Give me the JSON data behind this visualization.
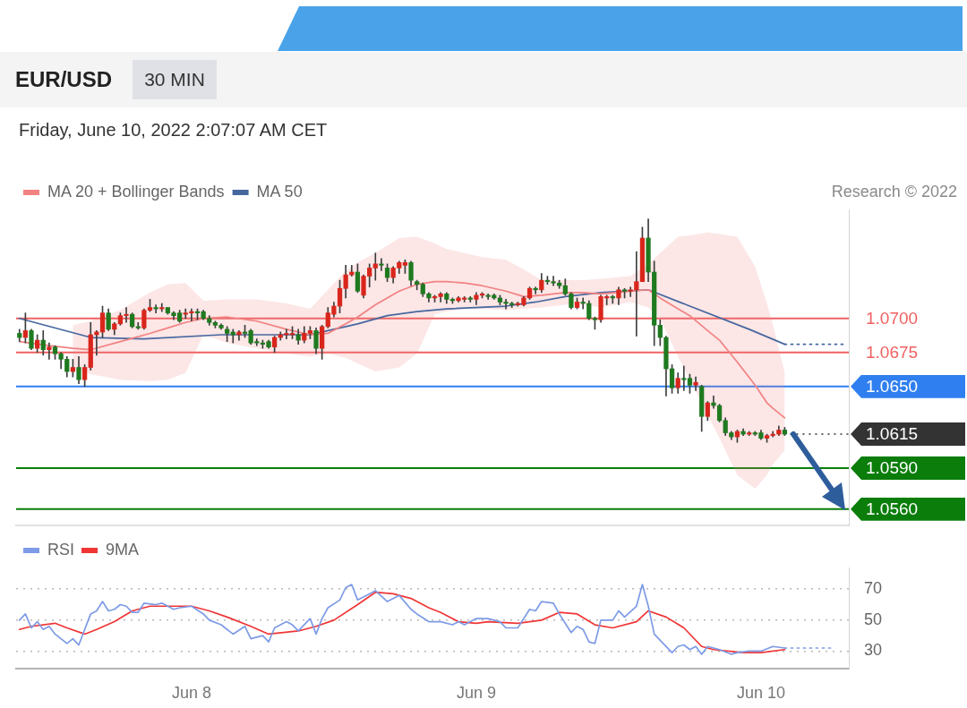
{
  "chart_data": [
    {
      "type": "candlestick",
      "title": "EUR/USD",
      "subtitle": "Friday, June 10, 2022 2:07:07 AM CET",
      "annotations": [
        "30 MIN",
        "Research © 2022"
      ],
      "xlim": [
        "2022-06-07T09:13",
        "2022-06-10T07:24"
      ],
      "ylim": [
        1.0548,
        1.078
      ],
      "tick_labels": false,
      "legend": "top left",
      "marker": "none",
      "ref_lines": [
        {
          "axis": "y",
          "value": 1.07,
          "label": "1.0700",
          "color": "#f06060"
        },
        {
          "axis": "y",
          "value": 1.0675,
          "label": "1.0675",
          "color": "#f06060"
        },
        {
          "axis": "y",
          "value": 1.065,
          "label": "1.0650",
          "color": "#2f7ff0"
        },
        {
          "axis": "y",
          "value": 1.0615,
          "label": "1.0615",
          "color": "#333333",
          "line_style": "dotted"
        },
        {
          "axis": "y",
          "value": 1.059,
          "label": "1.0590",
          "color": "#0a7d0a"
        },
        {
          "axis": "y",
          "value": 1.056,
          "label": "1.0560",
          "color": "#0a7d0a"
        }
      ],
      "series": [
        {
          "x": [
            "2022-06-07T09:30",
            "2022-06-07T10:00",
            "2022-06-07T10:30",
            "2022-06-07T11:00",
            "2022-06-07T11:30",
            "2022-06-07T12:00",
            "2022-06-07T12:30",
            "2022-06-07T13:00",
            "2022-06-07T13:30",
            "2022-06-07T14:00",
            "2022-06-07T14:30",
            "2022-06-07T15:00",
            "2022-06-07T15:30",
            "2022-06-07T16:00",
            "2022-06-07T16:30",
            "2022-06-07T17:00",
            "2022-06-07T17:30",
            "2022-06-07T18:00",
            "2022-06-07T18:30",
            "2022-06-07T19:00",
            "2022-06-07T19:30",
            "2022-06-07T20:00",
            "2022-06-07T20:30",
            "2022-06-07T21:00",
            "2022-06-07T21:30",
            "2022-06-07T22:00",
            "2022-06-07T22:30",
            "2022-06-07T23:00",
            "2022-06-07T23:30",
            "2022-06-08T00:00",
            "2022-06-08T00:30",
            "2022-06-08T01:00",
            "2022-06-08T01:30",
            "2022-06-08T02:00",
            "2022-06-08T02:30",
            "2022-06-08T03:00",
            "2022-06-08T03:30",
            "2022-06-08T04:00",
            "2022-06-08T04:30",
            "2022-06-08T05:00",
            "2022-06-08T05:30",
            "2022-06-08T06:00",
            "2022-06-08T06:30",
            "2022-06-08T07:00",
            "2022-06-08T07:30",
            "2022-06-08T08:00",
            "2022-06-08T08:30",
            "2022-06-08T09:00",
            "2022-06-08T09:30",
            "2022-06-08T10:00",
            "2022-06-08T10:30",
            "2022-06-08T11:00",
            "2022-06-08T11:30",
            "2022-06-08T12:00",
            "2022-06-08T12:30",
            "2022-06-08T13:00",
            "2022-06-08T13:30",
            "2022-06-08T14:00",
            "2022-06-08T14:30",
            "2022-06-08T15:00",
            "2022-06-08T15:30",
            "2022-06-08T16:00",
            "2022-06-08T16:30",
            "2022-06-08T17:00",
            "2022-06-08T17:30",
            "2022-06-08T18:00",
            "2022-06-08T18:30",
            "2022-06-08T19:00",
            "2022-06-08T19:30",
            "2022-06-08T20:00",
            "2022-06-08T20:30",
            "2022-06-08T21:00",
            "2022-06-08T21:30",
            "2022-06-08T22:00",
            "2022-06-08T22:30",
            "2022-06-08T23:00",
            "2022-06-08T23:30",
            "2022-06-09T00:00",
            "2022-06-09T00:30",
            "2022-06-09T01:00",
            "2022-06-09T01:30",
            "2022-06-09T02:00",
            "2022-06-09T02:30",
            "2022-06-09T03:00",
            "2022-06-09T03:30",
            "2022-06-09T04:00",
            "2022-06-09T04:30",
            "2022-06-09T05:00",
            "2022-06-09T05:30",
            "2022-06-09T06:00",
            "2022-06-09T06:30",
            "2022-06-09T07:00",
            "2022-06-09T07:30",
            "2022-06-09T08:00",
            "2022-06-09T08:30",
            "2022-06-09T09:00",
            "2022-06-09T09:30",
            "2022-06-09T10:00",
            "2022-06-09T10:30",
            "2022-06-09T11:00",
            "2022-06-09T11:30",
            "2022-06-09T12:00",
            "2022-06-09T12:30",
            "2022-06-09T13:00",
            "2022-06-09T13:30",
            "2022-06-09T14:00",
            "2022-06-09T14:30",
            "2022-06-09T15:00",
            "2022-06-09T15:30",
            "2022-06-09T16:00",
            "2022-06-09T16:30",
            "2022-06-09T17:00",
            "2022-06-09T17:30",
            "2022-06-09T18:00",
            "2022-06-09T18:30",
            "2022-06-09T19:00",
            "2022-06-09T19:30",
            "2022-06-09T20:00",
            "2022-06-09T20:30",
            "2022-06-09T21:00",
            "2022-06-09T21:30",
            "2022-06-09T22:00",
            "2022-06-09T22:30",
            "2022-06-09T23:00",
            "2022-06-09T23:30",
            "2022-06-10T00:00",
            "2022-06-10T00:30",
            "2022-06-10T01:00",
            "2022-06-10T01:30",
            "2022-06-10T02:00"
          ],
          "ohlc": [
            [
              1.0689,
              1.0692,
              1.0683,
              1.0686
            ],
            [
              1.0686,
              1.0704,
              1.0682,
              1.0691
            ],
            [
              1.0691,
              1.0692,
              1.0677,
              1.0678
            ],
            [
              1.0678,
              1.0688,
              1.0675,
              1.0684
            ],
            [
              1.0684,
              1.0691,
              1.0673,
              1.0677
            ],
            [
              1.0677,
              1.0682,
              1.067,
              1.0679
            ],
            [
              1.0679,
              1.068,
              1.067,
              1.0674
            ],
            [
              1.0674,
              1.0675,
              1.0663,
              1.067
            ],
            [
              1.067,
              1.0672,
              1.0657,
              1.0661
            ],
            [
              1.0661,
              1.067,
              1.0657,
              1.0664
            ],
            [
              1.0664,
              1.0672,
              1.0652,
              1.0655
            ],
            [
              1.0655,
              1.0666,
              1.065,
              1.0664
            ],
            [
              1.0664,
              1.0697,
              1.0662,
              1.0688
            ],
            [
              1.0688,
              1.0691,
              1.0673,
              1.069
            ],
            [
              1.069,
              1.0709,
              1.0686,
              1.0704
            ],
            [
              1.0704,
              1.0707,
              1.0691,
              1.0692
            ],
            [
              1.0692,
              1.0697,
              1.0688,
              1.0696
            ],
            [
              1.0696,
              1.0704,
              1.0695,
              1.0702
            ],
            [
              1.0702,
              1.0708,
              1.0697,
              1.0703
            ],
            [
              1.0703,
              1.0704,
              1.0693,
              1.0694
            ],
            [
              1.0694,
              1.0697,
              1.0692,
              1.0693
            ],
            [
              1.0693,
              1.0707,
              1.0692,
              1.0706
            ],
            [
              1.0706,
              1.0714,
              1.0705,
              1.0708
            ],
            [
              1.0708,
              1.071,
              1.0704,
              1.0707
            ],
            [
              1.0707,
              1.0711,
              1.0705,
              1.0708
            ],
            [
              1.0708,
              1.0708,
              1.0703,
              1.0704
            ],
            [
              1.0704,
              1.0705,
              1.0699,
              1.0702
            ],
            [
              1.0704,
              1.0706,
              1.0697,
              1.0698
            ],
            [
              1.0703,
              1.0707,
              1.07,
              1.0704
            ],
            [
              1.0704,
              1.0707,
              1.0698,
              1.0705
            ],
            [
              1.0705,
              1.0707,
              1.0699,
              1.0704
            ],
            [
              1.0705,
              1.0706,
              1.0699,
              1.07
            ],
            [
              1.07,
              1.0702,
              1.0695,
              1.0697
            ],
            [
              1.0697,
              1.0698,
              1.0693,
              1.0695
            ],
            [
              1.0695,
              1.0696,
              1.0692,
              1.0693
            ],
            [
              1.0692,
              1.0694,
              1.0683,
              1.0689
            ],
            [
              1.069,
              1.0692,
              1.0682,
              1.0688
            ],
            [
              1.0688,
              1.0691,
              1.0684,
              1.069
            ],
            [
              1.069,
              1.0695,
              1.0686,
              1.0689
            ],
            [
              1.0691,
              1.0692,
              1.0681,
              1.0682
            ],
            [
              1.0683,
              1.0685,
              1.068,
              1.0682
            ],
            [
              1.0682,
              1.0684,
              1.0678,
              1.0681
            ],
            [
              1.0683,
              1.0684,
              1.0678,
              1.0679
            ],
            [
              1.0679,
              1.0687,
              1.0675,
              1.0686
            ],
            [
              1.0686,
              1.069,
              1.0684,
              1.0688
            ],
            [
              1.0688,
              1.0692,
              1.0685,
              1.0689
            ],
            [
              1.0688,
              1.0694,
              1.0685,
              1.0689
            ],
            [
              1.0688,
              1.0692,
              1.0681,
              1.0684
            ],
            [
              1.0684,
              1.0694,
              1.0682,
              1.0689
            ],
            [
              1.0689,
              1.0694,
              1.0685,
              1.0691
            ],
            [
              1.0691,
              1.0693,
              1.0674,
              1.0678
            ],
            [
              1.0678,
              1.0695,
              1.067,
              1.0694
            ],
            [
              1.0694,
              1.0708,
              1.0693,
              1.0704
            ],
            [
              1.0703,
              1.0712,
              1.0701,
              1.0709
            ],
            [
              1.0709,
              1.0728,
              1.0704,
              1.0722
            ],
            [
              1.0722,
              1.0739,
              1.0715,
              1.0732
            ],
            [
              1.0732,
              1.0739,
              1.0731,
              1.0734
            ],
            [
              1.0734,
              1.074,
              1.0719,
              1.072
            ],
            [
              1.0717,
              1.0732,
              1.0715,
              1.0731
            ],
            [
              1.0731,
              1.074,
              1.0723,
              1.0737
            ],
            [
              1.0737,
              1.0748,
              1.0728,
              1.074
            ],
            [
              1.074,
              1.0744,
              1.0735,
              1.0739
            ],
            [
              1.0737,
              1.074,
              1.0727,
              1.073
            ],
            [
              1.073,
              1.0738,
              1.0726,
              1.0737
            ],
            [
              1.0737,
              1.0742,
              1.0733,
              1.0741
            ],
            [
              1.0739,
              1.0743,
              1.0733,
              1.0741
            ],
            [
              1.0741,
              1.0742,
              1.0724,
              1.0728
            ],
            [
              1.0727,
              1.0728,
              1.0721,
              1.0725
            ],
            [
              1.0725,
              1.0726,
              1.0716,
              1.0718
            ],
            [
              1.0718,
              1.0719,
              1.0712,
              1.0715
            ],
            [
              1.0715,
              1.0717,
              1.0712,
              1.0716
            ],
            [
              1.0716,
              1.0719,
              1.0712,
              1.0718
            ],
            [
              1.0718,
              1.0719,
              1.0711,
              1.0714
            ],
            [
              1.0714,
              1.0715,
              1.0711,
              1.0713
            ],
            [
              1.0713,
              1.0716,
              1.0712,
              1.0715
            ],
            [
              1.0714,
              1.0716,
              1.0712,
              1.0715
            ],
            [
              1.0715,
              1.0716,
              1.0712,
              1.0714
            ],
            [
              1.0714,
              1.0719,
              1.071,
              1.0717
            ],
            [
              1.0717,
              1.0719,
              1.0715,
              1.0718
            ],
            [
              1.0717,
              1.0718,
              1.0714,
              1.0716
            ],
            [
              1.0717,
              1.0718,
              1.0714,
              1.0715
            ],
            [
              1.0715,
              1.0717,
              1.071,
              1.0712
            ],
            [
              1.0712,
              1.0714,
              1.0707,
              1.0711
            ],
            [
              1.0711,
              1.0712,
              1.0708,
              1.071
            ],
            [
              1.071,
              1.0712,
              1.0709,
              1.0711
            ],
            [
              1.071,
              1.0716,
              1.0709,
              1.0715
            ],
            [
              1.0715,
              1.0723,
              1.0714,
              1.0722
            ],
            [
              1.0722,
              1.0723,
              1.0718,
              1.0721
            ],
            [
              1.0721,
              1.0733,
              1.0719,
              1.0728
            ],
            [
              1.0728,
              1.0731,
              1.0725,
              1.0727
            ],
            [
              1.0727,
              1.0731,
              1.0724,
              1.0726
            ],
            [
              1.0726,
              1.0728,
              1.0722,
              1.0724
            ],
            [
              1.0724,
              1.0729,
              1.0717,
              1.0718
            ],
            [
              1.0718,
              1.0719,
              1.0707,
              1.0708
            ],
            [
              1.0708,
              1.0715,
              1.0707,
              1.0712
            ],
            [
              1.0712,
              1.0715,
              1.0707,
              1.0711
            ],
            [
              1.0711,
              1.0713,
              1.0699,
              1.07
            ],
            [
              1.07,
              1.0701,
              1.0692,
              1.0699
            ],
            [
              1.0699,
              1.0717,
              1.0697,
              1.0716
            ],
            [
              1.0715,
              1.0717,
              1.071,
              1.0716
            ],
            [
              1.0716,
              1.0717,
              1.0711,
              1.0715
            ],
            [
              1.0715,
              1.0723,
              1.071,
              1.0721
            ],
            [
              1.0721,
              1.0722,
              1.0715,
              1.072
            ],
            [
              1.072,
              1.0723,
              1.0716,
              1.0721
            ],
            [
              1.0721,
              1.0749,
              1.0687,
              1.0727
            ],
            [
              1.0727,
              1.0767,
              1.0727,
              1.0759
            ],
            [
              1.0759,
              1.0773,
              1.0727,
              1.0734
            ],
            [
              1.0734,
              1.0742,
              1.068,
              1.0695
            ],
            [
              1.0695,
              1.0699,
              1.068,
              1.0686
            ],
            [
              1.0686,
              1.0687,
              1.0643,
              1.0663
            ],
            [
              1.0663,
              1.0666,
              1.0645,
              1.0649
            ],
            [
              1.0649,
              1.066,
              1.0645,
              1.0656
            ],
            [
              1.0656,
              1.0665,
              1.0647,
              1.0655
            ],
            [
              1.0656,
              1.0659,
              1.0645,
              1.0651
            ],
            [
              1.0651,
              1.0657,
              1.0647,
              1.0653
            ],
            [
              1.065,
              1.0651,
              1.0617,
              1.0628
            ],
            [
              1.0628,
              1.0639,
              1.0625,
              1.0638
            ],
            [
              1.0638,
              1.0643,
              1.0634,
              1.0636
            ],
            [
              1.0636,
              1.0637,
              1.0624,
              1.0625
            ],
            [
              1.0625,
              1.0627,
              1.0614,
              1.0616
            ],
            [
              1.0616,
              1.0617,
              1.0611,
              1.0613
            ],
            [
              1.0613,
              1.0618,
              1.0609,
              1.0617
            ],
            [
              1.0617,
              1.0619,
              1.0614,
              1.0615
            ],
            [
              1.0615,
              1.0617,
              1.0614,
              1.0616
            ],
            [
              1.0616,
              1.0617,
              1.0614,
              1.0615
            ],
            [
              1.0616,
              1.0618,
              1.0611,
              1.0612
            ],
            [
              1.0612,
              1.0615,
              1.0609,
              1.0614
            ],
            [
              1.0614,
              1.0617,
              1.0613,
              1.0615
            ],
            [
              1.0615,
              1.0621,
              1.0614,
              1.0618
            ],
            [
              1.0618,
              1.062,
              1.0614,
              1.0615
            ]
          ],
          "colors": [
            "#1f7a1f",
            "#d9261c",
            "#1f7a1f",
            "#d9261c",
            "#1f7a1f",
            "#d9261c",
            "#1f7a1f",
            "#1f7a1f",
            "#1f7a1f",
            "#d9261c",
            "#1f7a1f",
            "#d9261c",
            "#d9261c",
            "#d9261c",
            "#d9261c",
            "#1f7a1f",
            "#d9261c",
            "#d9261c",
            "#d9261c",
            "#1f7a1f",
            "#1f7a1f",
            "#d9261c",
            "#d9261c",
            "#1f7a1f",
            "#d9261c",
            "#1f7a1f",
            "#1f7a1f",
            "#1f7a1f",
            "#d9261c",
            "#d9261c",
            "#1f7a1f",
            "#1f7a1f",
            "#1f7a1f",
            "#1f7a1f",
            "#1f7a1f",
            "#1f7a1f",
            "#1f7a1f",
            "#d9261c",
            "#1f7a1f",
            "#1f7a1f",
            "#1f7a1f",
            "#1f7a1f",
            "#1f7a1f",
            "#d9261c",
            "#d9261c",
            "#d9261c",
            "#d9261c",
            "#1f7a1f",
            "#d9261c",
            "#d9261c",
            "#1f7a1f",
            "#d9261c",
            "#d9261c",
            "#d9261c",
            "#d9261c",
            "#d9261c",
            "#d9261c",
            "#1f7a1f",
            "#d9261c",
            "#d9261c",
            "#d9261c",
            "#1f7a1f",
            "#1f7a1f",
            "#d9261c",
            "#d9261c",
            "#d9261c",
            "#1f7a1f",
            "#1f7a1f",
            "#1f7a1f",
            "#1f7a1f",
            "#d9261c",
            "#d9261c",
            "#1f7a1f",
            "#1f7a1f",
            "#d9261c",
            "#d9261c",
            "#1f7a1f",
            "#d9261c",
            "#d9261c",
            "#1f7a1f",
            "#1f7a1f",
            "#1f7a1f",
            "#1f7a1f",
            "#1f7a1f",
            "#d9261c",
            "#d9261c",
            "#d9261c",
            "#1f7a1f",
            "#d9261c",
            "#1f7a1f",
            "#1f7a1f",
            "#1f7a1f",
            "#1f7a1f",
            "#1f7a1f",
            "#d9261c",
            "#1f7a1f",
            "#1f7a1f",
            "#1f7a1f",
            "#d9261c",
            "#d9261c",
            "#1f7a1f",
            "#d9261c",
            "#1f7a1f",
            "#d9261c",
            "#d9261c",
            "#d9261c",
            "#1f7a1f",
            "#1f7a1f",
            "#1f7a1f",
            "#1f7a1f",
            "#1f7a1f",
            "#d9261c",
            "#1f7a1f",
            "#1f7a1f",
            "#d9261c",
            "#1f7a1f",
            "#d9261c",
            "#1f7a1f",
            "#1f7a1f",
            "#1f7a1f",
            "#1f7a1f",
            "#d9261c",
            "#1f7a1f",
            "#d9261c",
            "#1f7a1f",
            "#1f7a1f",
            "#d9261c",
            "#d9261c",
            "#d9261c",
            "#1f7a1f"
          ]
        },
        {
          "type": "line",
          "name": "MA 20 + Bollinger Bands",
          "color": "#f28282",
          "x": [
            "2022-06-07T09:30",
            "2022-06-07T12:00",
            "2022-06-07T14:00",
            "2022-06-07T15:30",
            "2022-06-07T18:00",
            "2022-06-07T20:30",
            "2022-06-07T22:00",
            "2022-06-07T23:30",
            "2022-06-08T01:00",
            "2022-06-08T03:00",
            "2022-06-08T05:30",
            "2022-06-08T08:00",
            "2022-06-08T10:00",
            "2022-06-08T11:30",
            "2022-06-08T13:00",
            "2022-06-08T14:00",
            "2022-06-08T15:30",
            "2022-06-08T17:30",
            "2022-06-08T19:00",
            "2022-06-08T20:30",
            "2022-06-08T21:30",
            "2022-06-08T23:00",
            "2022-06-09T00:30",
            "2022-06-09T02:30",
            "2022-06-09T04:00",
            "2022-06-09T05:30",
            "2022-06-09T07:30",
            "2022-06-09T09:00",
            "2022-06-09T10:30",
            "2022-06-09T13:00",
            "2022-06-09T14:30",
            "2022-06-09T15:30",
            "2022-06-09T17:00",
            "2022-06-09T18:00",
            "2022-06-09T19:30",
            "2022-06-09T20:30",
            "2022-06-09T22:00",
            "2022-06-09T23:30",
            "2022-06-10T00:30",
            "2022-06-10T01:00",
            "2022-06-10T02:00"
          ],
          "values": [
            1.0683,
            1.068,
            1.0678,
            1.0677,
            1.0683,
            1.0689,
            1.0693,
            1.0697,
            1.07,
            1.0701,
            1.0698,
            1.0692,
            1.0688,
            1.0689,
            1.0696,
            1.0701,
            1.071,
            1.072,
            1.0725,
            1.0727,
            1.0727,
            1.0726,
            1.0724,
            1.072,
            1.0716,
            1.0717,
            1.0719,
            1.0719,
            1.0718,
            1.072,
            1.0721,
            1.0715,
            1.0707,
            1.0702,
            1.0691,
            1.0684,
            1.0668,
            1.0651,
            1.0638,
            1.0634,
            1.0627
          ],
          "upper": [
            null,
            null,
            1.0695,
            1.0698,
            1.0706,
            1.0719,
            1.0725,
            1.0726,
            1.0713,
            1.0714,
            1.0714,
            1.0711,
            1.0707,
            1.0721,
            1.0735,
            1.0741,
            1.0748,
            1.0759,
            1.076,
            1.0755,
            1.0751,
            1.0748,
            1.0745,
            1.0743,
            1.0736,
            1.0728,
            1.0728,
            1.0728,
            1.0729,
            1.0731,
            1.074,
            1.0748,
            1.076,
            1.0761,
            1.0763,
            1.0762,
            1.076,
            1.0738,
            1.0711,
            1.0695,
            1.066
          ],
          "lower": [
            null,
            null,
            1.0663,
            1.0659,
            1.0655,
            1.0654,
            1.0655,
            1.066,
            1.0688,
            1.0682,
            1.0678,
            1.0674,
            1.0672,
            1.0674,
            1.0671,
            1.0667,
            1.0661,
            1.0664,
            1.0674,
            1.0703,
            1.0705,
            1.0707,
            1.0707,
            1.0706,
            1.0707,
            1.0708,
            1.071,
            1.071,
            1.0708,
            1.0712,
            1.0708,
            1.07,
            1.0672,
            1.0655,
            1.0629,
            1.0612,
            1.0585,
            1.0575,
            1.0585,
            1.0593,
            1.0603
          ]
        },
        {
          "type": "line",
          "name": "MA 50",
          "color": "#46679e",
          "x": [
            "2022-06-07T09:30",
            "2022-06-07T15:30",
            "2022-06-07T20:00",
            "2022-06-08T02:30",
            "2022-06-08T10:00",
            "2022-06-08T11:30",
            "2022-06-08T14:00",
            "2022-06-08T16:30",
            "2022-06-08T19:00",
            "2022-06-08T21:30",
            "2022-06-09T02:30",
            "2022-06-09T05:00",
            "2022-06-09T07:30",
            "2022-06-09T10:30",
            "2022-06-09T14:30",
            "2022-06-09T18:00",
            "2022-06-09T23:00",
            "2022-06-10T02:00"
          ],
          "values": [
            1.07,
            1.0686,
            1.0685,
            1.0688,
            1.0688,
            1.0691,
            1.0696,
            1.0702,
            1.0705,
            1.0707,
            1.0709,
            1.0712,
            1.0716,
            1.0719,
            1.0721,
            1.0709,
            1.0692,
            1.0681
          ]
        },
        {
          "type": "line",
          "color": "#46679e",
          "line_style": "dotted",
          "x": [
            "2022-06-10T02:00",
            "2022-06-10T07:00"
          ],
          "values": [
            1.0681,
            1.0681
          ]
        }
      ]
    },
    {
      "type": "line",
      "xlim": [
        "2022-06-07T09:13",
        "2022-06-10T07:24"
      ],
      "ylim": [
        19,
        84
      ],
      "yticks": [
        30,
        50,
        70
      ],
      "xticks": [
        {
          "value": "2022-06-08",
          "label": "Jun 8"
        },
        {
          "value": "2022-06-09",
          "label": "Jun 9"
        },
        {
          "value": "2022-06-10",
          "label": "Jun 10"
        }
      ],
      "grid": "y",
      "legend": "top left",
      "marker": "none",
      "series": [
        {
          "name": "RSI",
          "color": "#7d9be6",
          "x": [
            "2022-06-07T09:30",
            "2022-06-07T10:00",
            "2022-06-07T10:30",
            "2022-06-07T11:00",
            "2022-06-07T11:30",
            "2022-06-07T12:00",
            "2022-06-07T12:30",
            "2022-06-07T13:30",
            "2022-06-07T14:00",
            "2022-06-07T14:30",
            "2022-06-07T15:30",
            "2022-06-07T16:00",
            "2022-06-07T16:30",
            "2022-06-07T17:00",
            "2022-06-07T17:30",
            "2022-06-07T18:00",
            "2022-06-07T18:30",
            "2022-06-07T19:00",
            "2022-06-07T19:30",
            "2022-06-07T20:00",
            "2022-06-07T21:00",
            "2022-06-07T21:30",
            "2022-06-07T22:30",
            "2022-06-07T23:00",
            "2022-06-08T00:00",
            "2022-06-08T01:00",
            "2022-06-08T01:30",
            "2022-06-08T02:30",
            "2022-06-08T03:30",
            "2022-06-08T04:30",
            "2022-06-08T05:00",
            "2022-06-08T06:00",
            "2022-06-08T06:30",
            "2022-06-08T07:00",
            "2022-06-08T08:00",
            "2022-06-08T08:30",
            "2022-06-08T09:00",
            "2022-06-08T10:00",
            "2022-06-08T10:30",
            "2022-06-08T11:00",
            "2022-06-08T11:30",
            "2022-06-08T12:30",
            "2022-06-08T13:00",
            "2022-06-08T13:30",
            "2022-06-08T14:00",
            "2022-06-08T15:00",
            "2022-06-08T15:30",
            "2022-06-08T16:30",
            "2022-06-08T17:30",
            "2022-06-08T18:30",
            "2022-06-08T19:00",
            "2022-06-08T20:00",
            "2022-06-08T20:30",
            "2022-06-08T21:00",
            "2022-06-08T22:00",
            "2022-06-08T22:30",
            "2022-06-08T23:00",
            "2022-06-09T00:00",
            "2022-06-09T01:00",
            "2022-06-09T02:00",
            "2022-06-09T02:30",
            "2022-06-09T03:30",
            "2022-06-09T04:30",
            "2022-06-09T05:00",
            "2022-06-09T05:30",
            "2022-06-09T06:30",
            "2022-06-09T07:00",
            "2022-06-09T08:00",
            "2022-06-09T08:30",
            "2022-06-09T09:00",
            "2022-06-09T09:30",
            "2022-06-09T10:00",
            "2022-06-09T10:30",
            "2022-06-09T11:30",
            "2022-06-09T12:00",
            "2022-06-09T12:30",
            "2022-06-09T13:30",
            "2022-06-09T14:00",
            "2022-06-09T14:30",
            "2022-06-09T15:00",
            "2022-06-09T15:30",
            "2022-06-09T16:30",
            "2022-06-09T17:00",
            "2022-06-09T17:30",
            "2022-06-09T18:00",
            "2022-06-09T18:30",
            "2022-06-09T19:00",
            "2022-06-09T19:30",
            "2022-06-09T20:30",
            "2022-06-09T21:30",
            "2022-06-09T22:00",
            "2022-06-09T23:00",
            "2022-06-10T00:00",
            "2022-06-10T01:00",
            "2022-06-10T02:00"
          ],
          "values": [
            50,
            54,
            45,
            49,
            44,
            46,
            41,
            35,
            38,
            34,
            54,
            56,
            62,
            56,
            57,
            60,
            59,
            55,
            55,
            61,
            60,
            61,
            57,
            58,
            59,
            54,
            50,
            47,
            41,
            46,
            38,
            40,
            36,
            45,
            49,
            47,
            43,
            51,
            41,
            51,
            58,
            63,
            71,
            73,
            63,
            67,
            69,
            62,
            66,
            57,
            54,
            49,
            49,
            49,
            47,
            49,
            47,
            51,
            51,
            49,
            45,
            45,
            57,
            56,
            62,
            61,
            54,
            42,
            46,
            44,
            36,
            35,
            50,
            50,
            56,
            52,
            59,
            73,
            59,
            41,
            37,
            29,
            33,
            34,
            31,
            33,
            28,
            33,
            31,
            28,
            29,
            30,
            30,
            33,
            32
          ]
        },
        {
          "name": "9MA",
          "color": "#f03535",
          "x": [
            "2022-06-07T09:30",
            "2022-06-07T10:30",
            "2022-06-07T12:30",
            "2022-06-07T13:30",
            "2022-06-07T15:00",
            "2022-06-07T16:00",
            "2022-06-07T17:30",
            "2022-06-07T19:00",
            "2022-06-07T20:30",
            "2022-06-07T22:00",
            "2022-06-08T00:00",
            "2022-06-08T01:30",
            "2022-06-08T03:00",
            "2022-06-08T05:00",
            "2022-06-08T06:30",
            "2022-06-08T09:00",
            "2022-06-08T10:30",
            "2022-06-08T12:00",
            "2022-06-08T14:00",
            "2022-06-08T15:30",
            "2022-06-08T17:00",
            "2022-06-08T18:30",
            "2022-06-08T20:00",
            "2022-06-08T21:00",
            "2022-06-08T22:30",
            "2022-06-09T00:00",
            "2022-06-09T01:00",
            "2022-06-09T03:30",
            "2022-06-09T05:30",
            "2022-06-09T07:00",
            "2022-06-09T08:30",
            "2022-06-09T10:00",
            "2022-06-09T11:30",
            "2022-06-09T13:30",
            "2022-06-09T14:30",
            "2022-06-09T16:00",
            "2022-06-09T17:30",
            "2022-06-09T19:00",
            "2022-06-09T20:00",
            "2022-06-09T22:30",
            "2022-06-10T00:00",
            "2022-06-10T02:00"
          ],
          "values": [
            44,
            46,
            48,
            45,
            41,
            44,
            49,
            56,
            59,
            59,
            59,
            56,
            52,
            46,
            41,
            43,
            46,
            50,
            60,
            68,
            67,
            64,
            58,
            55,
            49,
            48,
            49,
            48,
            50,
            55,
            54,
            47,
            45,
            49,
            56,
            52,
            45,
            33,
            31,
            29,
            29,
            31
          ]
        },
        {
          "color": "#7d9be6",
          "line_style": "dotted",
          "x": [
            "2022-06-10T02:00",
            "2022-06-10T06:00"
          ],
          "values": [
            32,
            32
          ]
        }
      ]
    }
  ]
}
